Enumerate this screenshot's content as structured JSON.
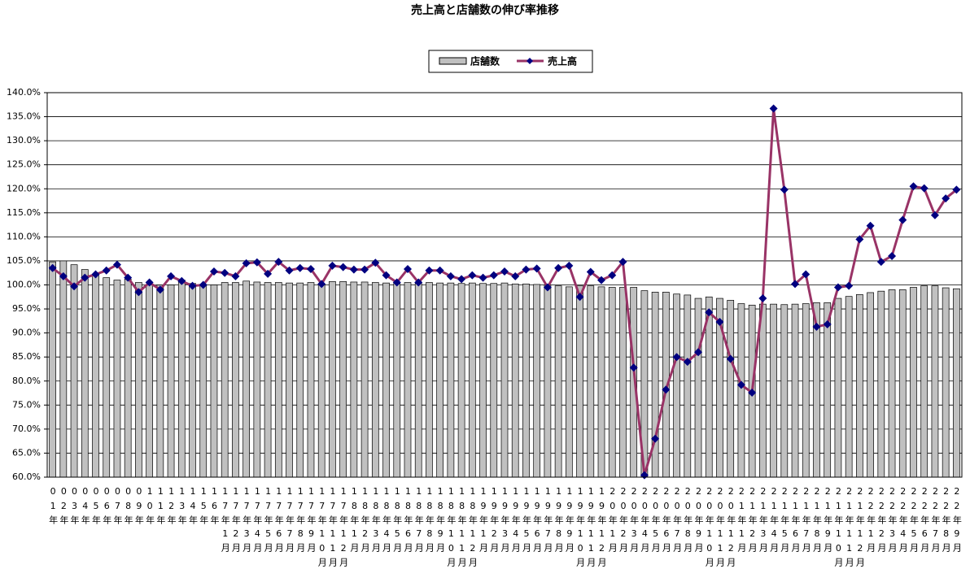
{
  "chart_data": {
    "type": "combo",
    "title": "売上高と店舗数の伸び率推移",
    "categories": [
      "01年",
      "02年",
      "03年",
      "04年",
      "05年",
      "06年",
      "07年",
      "08年",
      "09年",
      "10年",
      "11年",
      "12年",
      "13年",
      "14年",
      "15年",
      "16年",
      "17年1月",
      "17年2月",
      "17年3月",
      "17年4月",
      "17年5月",
      "17年6月",
      "17年7月",
      "17年8月",
      "17年9月",
      "17年10月",
      "17年11月",
      "17年12月",
      "18年1月",
      "18年2月",
      "18年3月",
      "18年4月",
      "18年5月",
      "18年6月",
      "18年7月",
      "18年8月",
      "18年9月",
      "18年10月",
      "18年11月",
      "18年12月",
      "19年1月",
      "19年2月",
      "19年3月",
      "19年4月",
      "19年5月",
      "19年6月",
      "19年7月",
      "19年8月",
      "19年9月",
      "19年10月",
      "19年11月",
      "19年12月",
      "20年1月",
      "20年2月",
      "20年3月",
      "20年4月",
      "20年5月",
      "20年6月",
      "20年7月",
      "20年8月",
      "20年9月",
      "20年10月",
      "20年11月",
      "20年12月",
      "21年1月",
      "21年2月",
      "21年3月",
      "21年4月",
      "21年5月",
      "21年6月",
      "21年7月",
      "21年8月",
      "21年9月",
      "21年10月",
      "21年11月",
      "21年12月",
      "22年1月",
      "22年2月",
      "22年3月",
      "22年4月",
      "22年5月",
      "22年6月",
      "22年7月",
      "22年8月",
      "22年9月"
    ],
    "series": [
      {
        "name": "店舗数",
        "type": "bar",
        "color": "#c0c0c0",
        "values": [
          104.8,
          105,
          104.2,
          103.2,
          102,
          101.5,
          101,
          101.2,
          100.5,
          100,
          100,
          100,
          101,
          100.3,
          100,
          100,
          100.5,
          100.5,
          100.8,
          100.6,
          100.5,
          100.5,
          100.4,
          100.4,
          100.5,
          100.2,
          100.7,
          100.7,
          100.6,
          100.6,
          100.5,
          100.4,
          100.3,
          100.5,
          100.5,
          100.5,
          100.4,
          100.4,
          100.3,
          100.4,
          100.3,
          100.3,
          100.4,
          100.2,
          100.2,
          100.1,
          100,
          99.8,
          99.6,
          99.8,
          99.8,
          99.6,
          99.5,
          99.5,
          99.5,
          98.8,
          98.5,
          98.5,
          98.1,
          97.9,
          97.2,
          97.5,
          97.2,
          96.8,
          96.1,
          95.8,
          96,
          96,
          95.9,
          96,
          96.1,
          96.3,
          96.3,
          97.2,
          97.6,
          98,
          98.4,
          98.7,
          99,
          99,
          99.5,
          99.8,
          99.8,
          99.4,
          99.2
        ]
      },
      {
        "name": "売上高",
        "type": "line",
        "color": "#993366",
        "marker_color": "#000080",
        "values": [
          103.5,
          101.8,
          99.7,
          101.5,
          102.2,
          103,
          104.2,
          101.5,
          98.5,
          100.5,
          99,
          101.8,
          100.8,
          99.8,
          100,
          102.8,
          102.5,
          101.8,
          104.5,
          104.7,
          102.3,
          104.8,
          103,
          103.5,
          103.3,
          100.2,
          104,
          103.7,
          103.2,
          103.2,
          104.6,
          102,
          100.5,
          103.3,
          100.5,
          103,
          103,
          101.8,
          101.2,
          102,
          101.5,
          102,
          102.8,
          101.8,
          103.2,
          103.4,
          99.5,
          103.5,
          104,
          97.5,
          102.7,
          101,
          102,
          104.8,
          82.8,
          60.4,
          68,
          78.2,
          85,
          84,
          86,
          94.3,
          92.3,
          84.6,
          79.2,
          77.6,
          97.2,
          136.7,
          119.8,
          100.2,
          102.2,
          91.3,
          91.8,
          99.5,
          99.8,
          109.5,
          112.3,
          104.8,
          106,
          113.5,
          120.5,
          120.1,
          114.5,
          118,
          119.8
        ]
      }
    ],
    "ylim": [
      60,
      140
    ],
    "yticks": [
      {
        "value": 60,
        "label": "60.0%"
      },
      {
        "value": 65,
        "label": "65.0%"
      },
      {
        "value": 70,
        "label": "70.0%"
      },
      {
        "value": 75,
        "label": "75.0%"
      },
      {
        "value": 80,
        "label": "80.0%"
      },
      {
        "value": 85,
        "label": "85.0%"
      },
      {
        "value": 90,
        "label": "90.0%"
      },
      {
        "value": 95,
        "label": "95.0%"
      },
      {
        "value": 100,
        "label": "100.0%"
      },
      {
        "value": 105,
        "label": "105.0%"
      },
      {
        "value": 110,
        "label": "110.0%"
      },
      {
        "value": 115,
        "label": "115.0%"
      },
      {
        "value": 120,
        "label": "120.0%"
      },
      {
        "value": 125,
        "label": "125.0%"
      },
      {
        "value": 130,
        "label": "130.0%"
      },
      {
        "value": 135,
        "label": "135.0%"
      },
      {
        "value": 140,
        "label": "140.0%"
      }
    ],
    "grid": true,
    "legend": "top"
  }
}
